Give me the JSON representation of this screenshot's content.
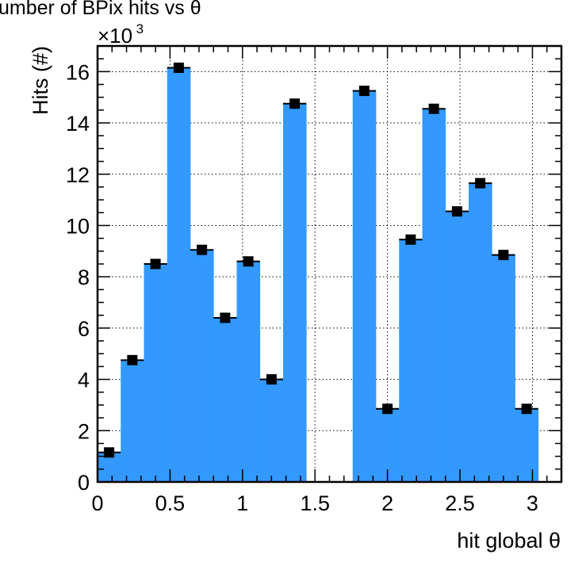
{
  "chart_data": {
    "type": "bar",
    "title": "umber of BPix hits vs θ",
    "xlabel": "hit global θ",
    "ylabel": "Hits (#)",
    "y_multiplier_label": "×10",
    "y_multiplier_exponent": "3",
    "xlim": [
      0,
      3.2
    ],
    "ylim": [
      0,
      17
    ],
    "bin_width": 0.16,
    "bin_low_edges": [
      0.0,
      0.16,
      0.32,
      0.48,
      0.64,
      0.8,
      0.96,
      1.12,
      1.28,
      1.44,
      1.6,
      1.76,
      1.92,
      2.08,
      2.24,
      2.4,
      2.56,
      2.72,
      2.88
    ],
    "values": [
      1.15,
      4.75,
      8.5,
      16.15,
      9.05,
      6.4,
      8.6,
      4.0,
      14.75,
      0,
      0,
      15.25,
      2.85,
      9.45,
      14.55,
      10.55,
      11.65,
      8.85,
      2.85
    ],
    "markers_shown": [
      true,
      true,
      true,
      true,
      true,
      true,
      true,
      true,
      true,
      false,
      false,
      true,
      true,
      true,
      true,
      true,
      true,
      true,
      true
    ],
    "x_major_ticks": [
      0,
      0.5,
      1,
      1.5,
      2,
      2.5,
      3
    ],
    "x_tick_labels": [
      "0",
      "0.5",
      "1",
      "1.5",
      "2",
      "2.5",
      "3"
    ],
    "y_major_ticks": [
      0,
      2,
      4,
      6,
      8,
      10,
      12,
      14,
      16
    ],
    "y_tick_labels": [
      "0",
      "2",
      "4",
      "6",
      "8",
      "10",
      "12",
      "14",
      "16"
    ],
    "grid": true,
    "legend": "none",
    "fill_color": "#3399ff",
    "marker_color": "#000000"
  }
}
